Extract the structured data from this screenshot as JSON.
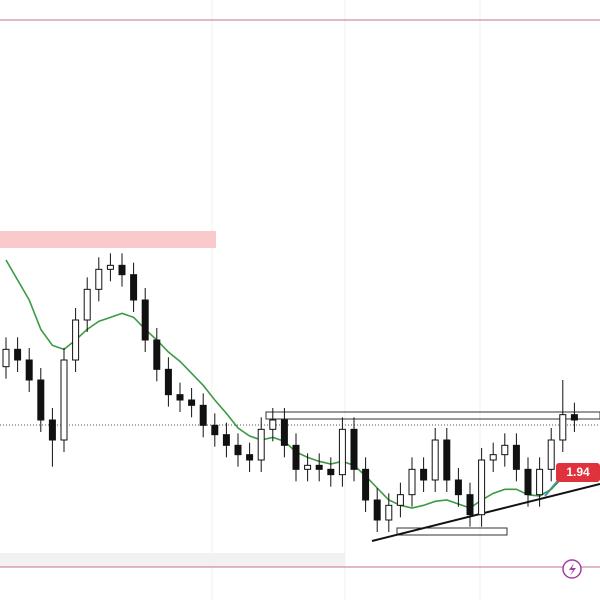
{
  "chart_data": {
    "type": "candlestick",
    "open": [
      2.75,
      2.88,
      2.8,
      2.65,
      2.35,
      2.2,
      2.8,
      3.1,
      3.33,
      3.48,
      3.51,
      3.44,
      3.25,
      2.95,
      2.73,
      2.54,
      2.5,
      2.46,
      2.31,
      2.24,
      2.16,
      2.09,
      2.05,
      2.28,
      2.35,
      2.16,
      1.98,
      2.01,
      1.98,
      1.94,
      2.28,
      1.98,
      1.75,
      1.6,
      1.71,
      1.79,
      1.98,
      1.9,
      2.2,
      1.9,
      1.79,
      1.64,
      2.05,
      2.09,
      2.16,
      1.98,
      1.79,
      1.98,
      2.2,
      2.39
    ],
    "high": [
      2.97,
      2.97,
      2.89,
      2.74,
      2.44,
      2.89,
      3.19,
      3.42,
      3.57,
      3.6,
      3.6,
      3.53,
      3.34,
      3.04,
      2.82,
      2.63,
      2.59,
      2.55,
      2.4,
      2.33,
      2.25,
      2.18,
      2.37,
      2.44,
      2.44,
      2.25,
      2.1,
      2.1,
      2.07,
      2.37,
      2.37,
      2.07,
      1.84,
      1.8,
      1.88,
      2.07,
      2.07,
      2.29,
      2.29,
      1.99,
      1.88,
      2.14,
      2.18,
      2.25,
      2.25,
      2.07,
      2.07,
      2.29,
      2.65,
      2.48
    ],
    "low": [
      2.66,
      2.71,
      2.56,
      2.26,
      2.0,
      2.11,
      2.71,
      3.01,
      3.24,
      3.39,
      3.35,
      3.16,
      2.86,
      2.64,
      2.45,
      2.41,
      2.37,
      2.22,
      2.15,
      2.07,
      2.0,
      1.96,
      1.96,
      2.19,
      2.07,
      1.89,
      1.89,
      1.89,
      1.85,
      1.85,
      1.89,
      1.66,
      1.51,
      1.51,
      1.62,
      1.7,
      1.81,
      1.81,
      1.81,
      1.7,
      1.55,
      1.55,
      1.96,
      2.0,
      1.89,
      1.7,
      1.7,
      1.89,
      2.11,
      2.26
    ],
    "close": [
      2.88,
      2.8,
      2.65,
      2.35,
      2.2,
      2.8,
      3.1,
      3.33,
      3.48,
      3.51,
      3.44,
      3.25,
      2.95,
      2.73,
      2.54,
      2.5,
      2.46,
      2.31,
      2.24,
      2.16,
      2.09,
      2.05,
      2.28,
      2.35,
      2.16,
      1.98,
      2.01,
      1.98,
      1.94,
      2.28,
      1.98,
      1.75,
      1.6,
      1.71,
      1.79,
      1.98,
      1.9,
      2.2,
      1.9,
      1.79,
      1.64,
      2.05,
      2.09,
      2.16,
      1.98,
      1.79,
      1.98,
      2.2,
      2.39,
      2.35
    ],
    "up_color": "#ffffff",
    "down_color": "#111111",
    "ma": {
      "color": "#3d9a45",
      "values": [
        3.55,
        3.4,
        3.25,
        3.03,
        2.91,
        2.88,
        2.95,
        3.03,
        3.09,
        3.12,
        3.15,
        3.12,
        3.03,
        2.95,
        2.86,
        2.79,
        2.7,
        2.61,
        2.5,
        2.4,
        2.29,
        2.23,
        2.2,
        2.22,
        2.19,
        2.11,
        2.07,
        2.04,
        2.02,
        2.04,
        2.01,
        1.93,
        1.84,
        1.75,
        1.71,
        1.69,
        1.71,
        1.74,
        1.75,
        1.72,
        1.69,
        1.75,
        1.8,
        1.83,
        1.83,
        1.79,
        1.78,
        1.83,
        1.92,
        2.01
      ]
    },
    "ylim": [
      1.0,
      5.5
    ],
    "price_label": "1.94",
    "price_label_color": "#e0323c"
  }
}
